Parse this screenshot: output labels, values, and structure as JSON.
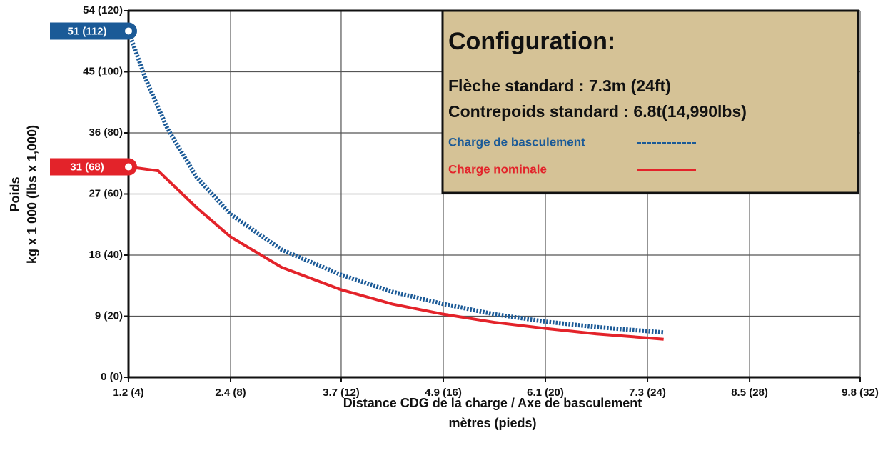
{
  "chart_data": {
    "type": "line",
    "title": "Configuration:",
    "subtitle": [
      "Flèche standard : 7.3m (24ft)",
      "Contrepoids standard : 6.8t(14,990lbs)"
    ],
    "x_label": [
      "Distance CDG de la charge / Axe de basculement",
      "mètres (pieds)"
    ],
    "y_label": [
      "Poids",
      "kg x 1 000 (lbs x 1,000)"
    ],
    "xlim": [
      1.2,
      9.8
    ],
    "xticks": [
      {
        "value": 1.2,
        "label": "1.2 (4)"
      },
      {
        "value": 2.4,
        "label": "2.4 (8)"
      },
      {
        "value": 3.7,
        "label": "3.7 (12)"
      },
      {
        "value": 4.9,
        "label": "4.9 (16)"
      },
      {
        "value": 6.1,
        "label": "6.1 (20)"
      },
      {
        "value": 7.3,
        "label": "7.3 (24)"
      },
      {
        "value": 8.5,
        "label": "8.5 (28)"
      },
      {
        "value": 9.8,
        "label": "9.8 (32)"
      }
    ],
    "ylim": [
      0,
      54
    ],
    "yticks": [
      {
        "value": 0,
        "label": "0 (0)"
      },
      {
        "value": 9,
        "label": "9 (20)"
      },
      {
        "value": 18,
        "label": "18 (40)"
      },
      {
        "value": 27,
        "label": "27 (60)"
      },
      {
        "value": 36,
        "label": "36 (80)"
      },
      {
        "value": 45,
        "label": "45 (100)"
      },
      {
        "value": 54,
        "label": "54 (120)"
      }
    ],
    "grid": true,
    "series": [
      {
        "name": "Charge de basculement",
        "color": "#1b5a97",
        "dashed": true,
        "x": [
          1.2,
          1.4,
          1.66,
          2.0,
          2.4,
          3.0,
          3.7,
          4.3,
          4.9,
          5.5,
          6.1,
          6.7,
          7.3,
          7.49
        ],
        "values": [
          51,
          44,
          36.6,
          29.5,
          24.0,
          18.8,
          15.1,
          12.6,
          10.8,
          9.3,
          8.2,
          7.4,
          6.8,
          6.6
        ]
      },
      {
        "name": "Charge nominale",
        "color": "#e3232a",
        "dashed": false,
        "x": [
          1.2,
          1.55,
          2.0,
          2.4,
          3.0,
          3.7,
          4.3,
          4.9,
          5.5,
          6.1,
          6.7,
          7.3,
          7.49
        ],
        "values": [
          31,
          30.4,
          25.0,
          20.7,
          16.2,
          12.9,
          10.8,
          9.3,
          8.1,
          7.2,
          6.4,
          5.8,
          5.6
        ]
      }
    ],
    "annotations": [
      {
        "label": "51 (112)",
        "value": 51,
        "color": "#1b5a97"
      },
      {
        "label": "31 (68)",
        "value": 31,
        "color": "#e3232a"
      }
    ]
  }
}
